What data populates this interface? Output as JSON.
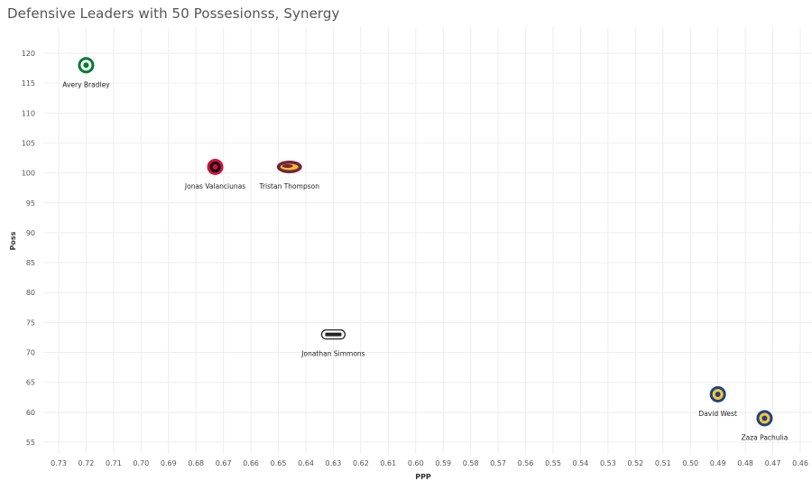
{
  "chart_data": {
    "type": "scatter",
    "title": "Defensive Leaders with 50 Possesionss, Synergy",
    "xlabel": "PPP",
    "ylabel": "Poss",
    "x_reversed": true,
    "xlim": [
      0.73,
      0.46
    ],
    "ylim": [
      55,
      120
    ],
    "xticks": [
      "0.73",
      "0.72",
      "0.71",
      "0.70",
      "0.69",
      "0.68",
      "0.67",
      "0.66",
      "0.65",
      "0.64",
      "0.63",
      "0.62",
      "0.61",
      "0.60",
      "0.59",
      "0.58",
      "0.57",
      "0.56",
      "0.55",
      "0.54",
      "0.53",
      "0.52",
      "0.51",
      "0.50",
      "0.49",
      "0.48",
      "0.47",
      "0.46"
    ],
    "yticks": [
      "55",
      "60",
      "65",
      "70",
      "75",
      "80",
      "85",
      "90",
      "95",
      "100",
      "105",
      "110",
      "115",
      "120"
    ],
    "grid": true,
    "points": [
      {
        "player": "Avery Bradley",
        "team_icon": "celtics-logo-icon",
        "color": "#007A33",
        "x": 0.72,
        "y": 118
      },
      {
        "player": "Jonas Valanciunas",
        "team_icon": "raptors-logo-icon",
        "color": "#CE1141",
        "x": 0.673,
        "y": 101
      },
      {
        "player": "Tristan Thompson",
        "team_icon": "cavaliers-logo-icon",
        "color": "#6F263D",
        "x": 0.646,
        "y": 101
      },
      {
        "player": "Jonathan Simmons",
        "team_icon": "spurs-logo-icon",
        "color": "#222222",
        "x": 0.63,
        "y": 73
      },
      {
        "player": "David West",
        "team_icon": "warriors-logo-icon",
        "color": "#1D428A",
        "x": 0.49,
        "y": 63
      },
      {
        "player": "Zaza Pachulia",
        "team_icon": "warriors-logo-icon",
        "color": "#1D428A",
        "x": 0.473,
        "y": 59
      }
    ]
  }
}
